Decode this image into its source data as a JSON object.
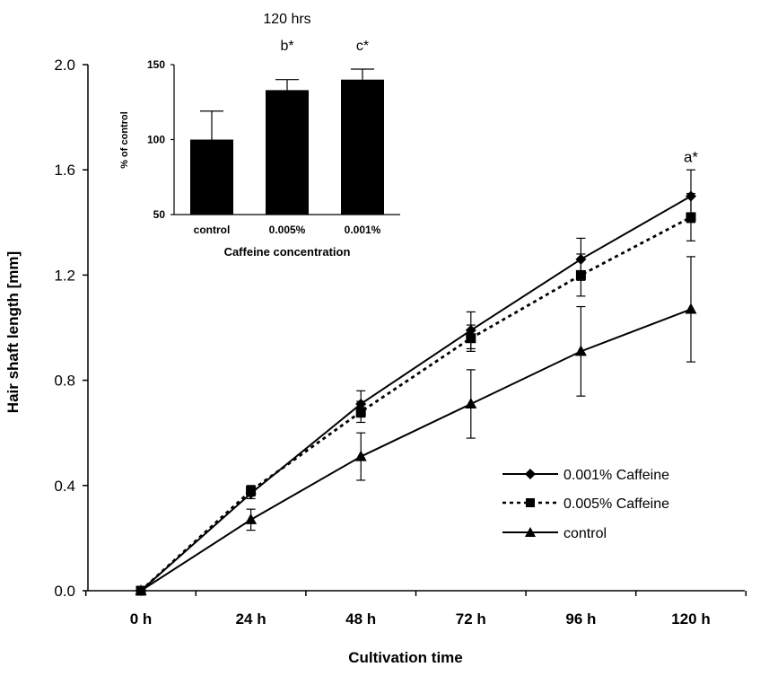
{
  "chart_data": [
    {
      "type": "line",
      "title": "",
      "xlabel": "Cultivation time",
      "ylabel": "Hair shaft length [mm]",
      "categories": [
        "0 h",
        "24 h",
        "48 h",
        "72 h",
        "96 h",
        "120 h"
      ],
      "ylim": [
        0,
        2.0
      ],
      "yticks": [
        0.0,
        0.4,
        0.8,
        1.2,
        1.6,
        2.0
      ],
      "ytick_labels": [
        "0.0",
        "0.4",
        "0.8",
        "1.2",
        "1.6",
        "2.0"
      ],
      "grid": false,
      "legend_position": "lower-right",
      "series": [
        {
          "name": "0.001% Caffeine",
          "marker": "diamond",
          "line": "solid",
          "values": [
            0.0,
            0.37,
            0.71,
            0.99,
            1.26,
            1.5
          ],
          "errors": [
            0.0,
            0.02,
            0.05,
            0.07,
            0.08,
            0.1
          ]
        },
        {
          "name": "0.005% Caffeine",
          "marker": "square",
          "line": "dotted",
          "values": [
            0.0,
            0.38,
            0.68,
            0.96,
            1.2,
            1.42
          ],
          "errors": [
            0.0,
            0.02,
            0.04,
            0.05,
            0.08,
            0.09
          ]
        },
        {
          "name": "control",
          "marker": "triangle",
          "line": "solid",
          "values": [
            0.0,
            0.27,
            0.51,
            0.71,
            0.91,
            1.07
          ],
          "errors": [
            0.0,
            0.04,
            0.09,
            0.13,
            0.17,
            0.2
          ]
        }
      ],
      "annotations": [
        {
          "text": "a*",
          "category": "120 h",
          "value": 1.65
        }
      ]
    },
    {
      "type": "bar",
      "header": "120 hrs",
      "title": "",
      "xlabel": "Caffeine concentration",
      "ylabel": "% of control",
      "categories": [
        "control",
        "0.005%",
        "0.001%"
      ],
      "values": [
        100,
        133,
        140
      ],
      "errors": [
        19,
        7,
        7
      ],
      "ylim": [
        50,
        150
      ],
      "yticks": [
        50,
        100,
        150
      ],
      "ytick_labels": [
        "50",
        "100",
        "150"
      ],
      "bar_labels": [
        "",
        "b*",
        "c*"
      ]
    }
  ]
}
